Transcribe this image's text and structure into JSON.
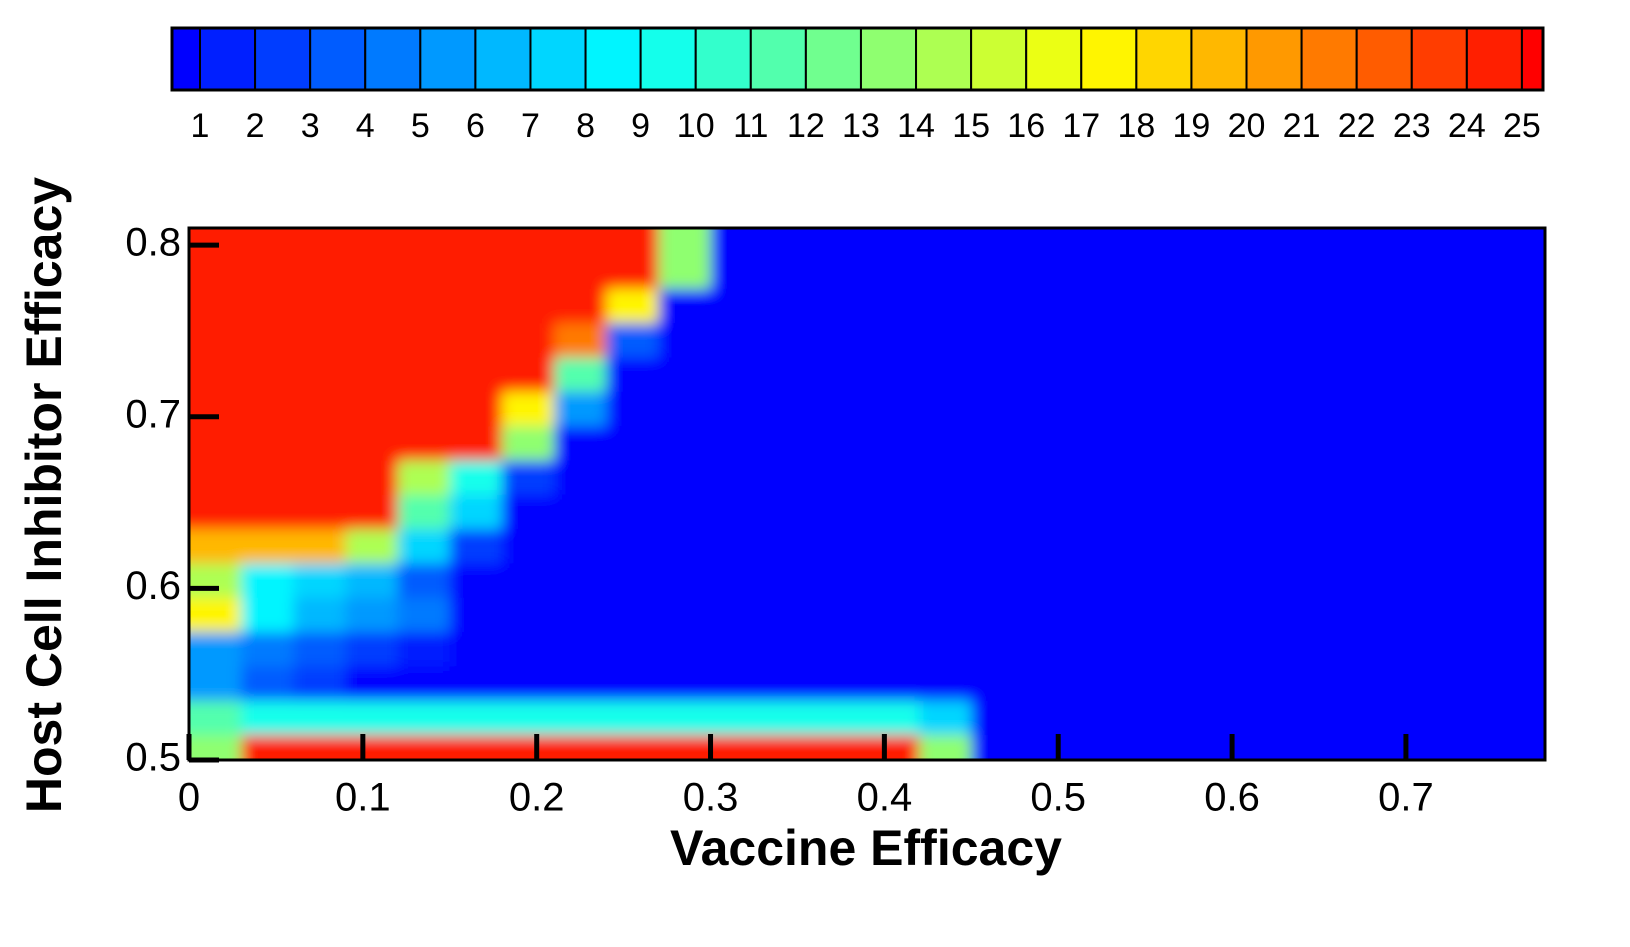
{
  "chart_data": {
    "type": "heatmap",
    "xlabel": "Vaccine Efficacy",
    "ylabel": "Host Cell Inhibitor Efficacy",
    "colormap": "jet",
    "levels": [
      1,
      2,
      3,
      4,
      5,
      6,
      7,
      8,
      9,
      10,
      11,
      12,
      13,
      14,
      15,
      16,
      17,
      18,
      19,
      20,
      21,
      22,
      23,
      24,
      25
    ],
    "xlim": [
      0,
      0.78
    ],
    "ylim": [
      0.5,
      0.81
    ],
    "xticks": [
      0,
      0.1,
      0.2,
      0.3,
      0.4,
      0.5,
      0.6,
      0.7
    ],
    "yticks": [
      0.5,
      0.6,
      0.7,
      0.8
    ],
    "x": [
      0.015,
      0.045,
      0.075,
      0.105,
      0.135,
      0.165,
      0.195,
      0.225,
      0.255,
      0.285,
      0.315,
      0.345,
      0.375,
      0.405,
      0.435,
      0.465,
      0.495,
      0.525,
      0.555,
      0.585,
      0.615,
      0.645,
      0.675,
      0.705,
      0.735,
      0.765
    ],
    "y": [
      0.505,
      0.525,
      0.545,
      0.565,
      0.585,
      0.605,
      0.625,
      0.645,
      0.665,
      0.685,
      0.705,
      0.725,
      0.745,
      0.765,
      0.785,
      0.805
    ],
    "z": [
      [
        14,
        25,
        25,
        25,
        25,
        25,
        25,
        25,
        25,
        25,
        25,
        25,
        25,
        25,
        14,
        1,
        1,
        1,
        1,
        1,
        1,
        1,
        1,
        1,
        1,
        1
      ],
      [
        12,
        10,
        10,
        10,
        10,
        10,
        10,
        10,
        10,
        10,
        10,
        10,
        10,
        10,
        8,
        1,
        1,
        1,
        1,
        1,
        1,
        1,
        1,
        1,
        1,
        1
      ],
      [
        6,
        4,
        3,
        1,
        1,
        1,
        1,
        1,
        1,
        1,
        1,
        1,
        1,
        1,
        1,
        1,
        1,
        1,
        1,
        1,
        1,
        1,
        1,
        1,
        1,
        1
      ],
      [
        6,
        5,
        4,
        3,
        2,
        1,
        1,
        1,
        1,
        1,
        1,
        1,
        1,
        1,
        1,
        1,
        1,
        1,
        1,
        1,
        1,
        1,
        1,
        1,
        1,
        1
      ],
      [
        18,
        9,
        7,
        6,
        5,
        1,
        1,
        1,
        1,
        1,
        1,
        1,
        1,
        1,
        1,
        1,
        1,
        1,
        1,
        1,
        1,
        1,
        1,
        1,
        1,
        1
      ],
      [
        15,
        9,
        8,
        7,
        4,
        1,
        1,
        1,
        1,
        1,
        1,
        1,
        1,
        1,
        1,
        1,
        1,
        1,
        1,
        1,
        1,
        1,
        1,
        1,
        1,
        1
      ],
      [
        20,
        20,
        20,
        15,
        8,
        3,
        1,
        1,
        1,
        1,
        1,
        1,
        1,
        1,
        1,
        1,
        1,
        1,
        1,
        1,
        1,
        1,
        1,
        1,
        1,
        1
      ],
      [
        25,
        25,
        25,
        25,
        12,
        8,
        1,
        1,
        1,
        1,
        1,
        1,
        1,
        1,
        1,
        1,
        1,
        1,
        1,
        1,
        1,
        1,
        1,
        1,
        1,
        1
      ],
      [
        25,
        25,
        25,
        25,
        15,
        10,
        3,
        1,
        1,
        1,
        1,
        1,
        1,
        1,
        1,
        1,
        1,
        1,
        1,
        1,
        1,
        1,
        1,
        1,
        1,
        1
      ],
      [
        25,
        25,
        25,
        25,
        25,
        25,
        14,
        1,
        1,
        1,
        1,
        1,
        1,
        1,
        1,
        1,
        1,
        1,
        1,
        1,
        1,
        1,
        1,
        1,
        1,
        1
      ],
      [
        25,
        25,
        25,
        25,
        25,
        25,
        18,
        6,
        1,
        1,
        1,
        1,
        1,
        1,
        1,
        1,
        1,
        1,
        1,
        1,
        1,
        1,
        1,
        1,
        1,
        1
      ],
      [
        25,
        25,
        25,
        25,
        25,
        25,
        25,
        12,
        1,
        1,
        1,
        1,
        1,
        1,
        1,
        1,
        1,
        1,
        1,
        1,
        1,
        1,
        1,
        1,
        1,
        1
      ],
      [
        25,
        25,
        25,
        25,
        25,
        25,
        25,
        22,
        4,
        1,
        1,
        1,
        1,
        1,
        1,
        1,
        1,
        1,
        1,
        1,
        1,
        1,
        1,
        1,
        1,
        1
      ],
      [
        25,
        25,
        25,
        25,
        25,
        25,
        25,
        25,
        18,
        1,
        1,
        1,
        1,
        1,
        1,
        1,
        1,
        1,
        1,
        1,
        1,
        1,
        1,
        1,
        1,
        1
      ],
      [
        25,
        25,
        25,
        25,
        25,
        25,
        25,
        25,
        25,
        14,
        1,
        1,
        1,
        1,
        1,
        1,
        1,
        1,
        1,
        1,
        1,
        1,
        1,
        1,
        1,
        1
      ],
      [
        25,
        25,
        25,
        25,
        25,
        25,
        25,
        25,
        25,
        14,
        1,
        1,
        1,
        1,
        1,
        1,
        1,
        1,
        1,
        1,
        1,
        1,
        1,
        1,
        1,
        1
      ]
    ]
  }
}
